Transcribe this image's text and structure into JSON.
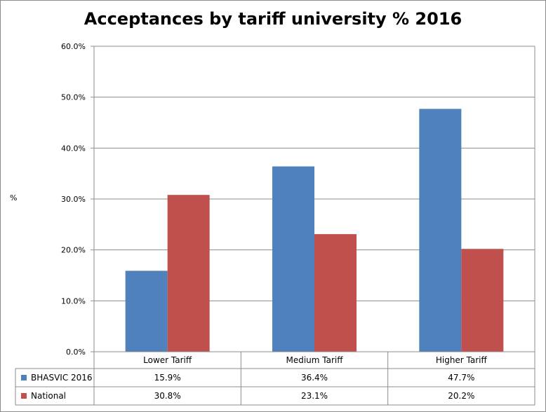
{
  "chart_data": {
    "type": "bar",
    "title": "Acceptances by tariff university % 2016",
    "ylabel": "%",
    "xlabel": "",
    "ylim": [
      0,
      60
    ],
    "yticks": [
      "0.0%",
      "10.0%",
      "20.0%",
      "30.0%",
      "40.0%",
      "50.0%",
      "60.0%"
    ],
    "categories": [
      "Lower Tariff",
      "Medium Tariff",
      "Higher Tariff"
    ],
    "series": [
      {
        "name": "BHASVIC 2016",
        "color": "#4f81bd",
        "values": [
          15.9,
          36.4,
          47.7
        ],
        "labels": [
          "15.9%",
          "36.4%",
          "47.7%"
        ]
      },
      {
        "name": "National",
        "color": "#c0504d",
        "values": [
          30.8,
          23.1,
          20.2
        ],
        "labels": [
          "30.8%",
          "23.1%",
          "20.2%"
        ]
      }
    ],
    "grid": true,
    "legend": "data-table"
  }
}
